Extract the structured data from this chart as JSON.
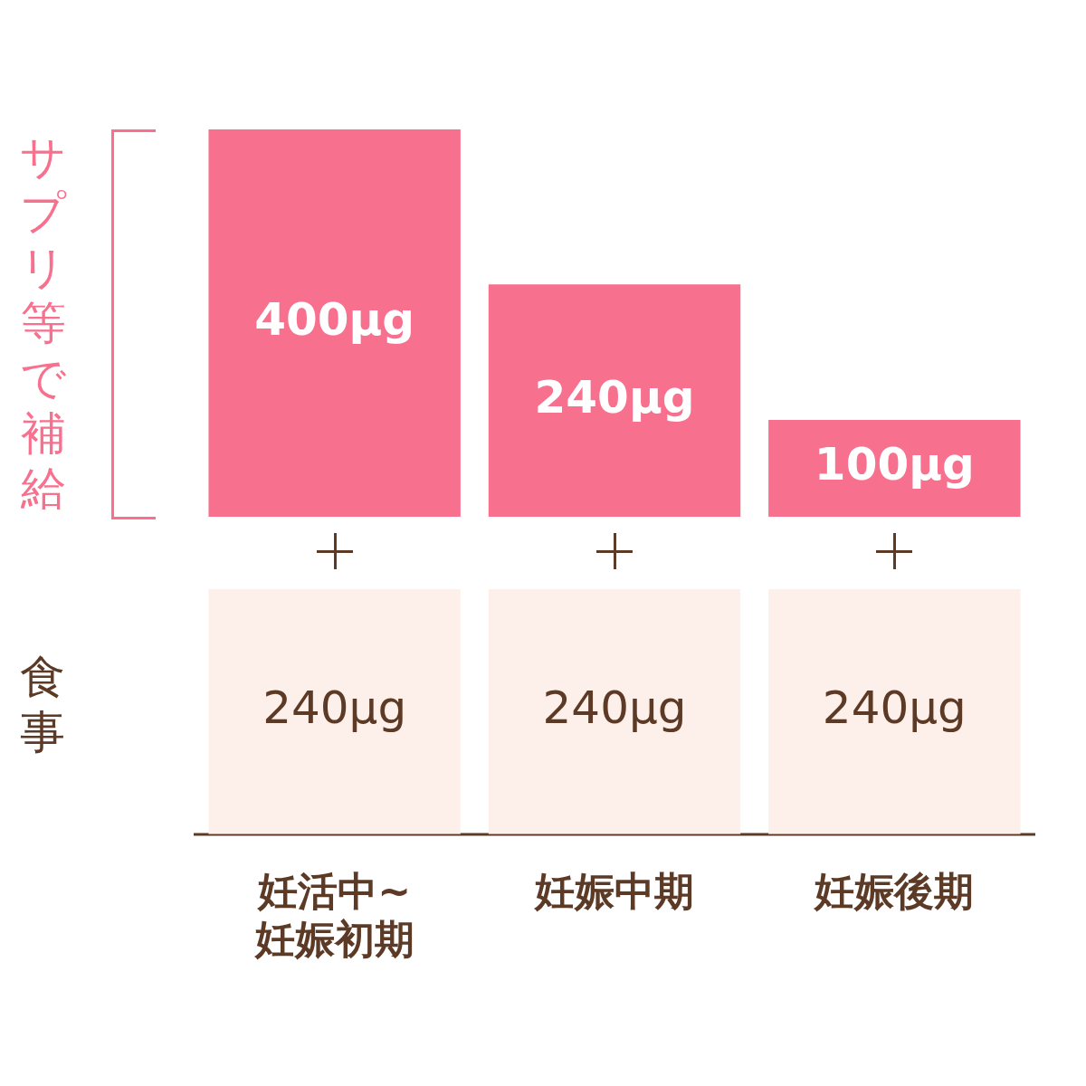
{
  "chart_data": [
    {
      "type": "bar",
      "ylabel": "サプリ等で補給",
      "tick_labels": false,
      "grid": false,
      "legend": false,
      "series": [
        {
          "color": "#f7708e",
          "values": [
            400,
            240,
            100
          ],
          "value_labels": [
            "400μg",
            "240μg",
            "100μg"
          ]
        }
      ]
    },
    {
      "type": "bar",
      "ylabel": "食事",
      "categories": [
        "妊活中~\n妊娠初期",
        "妊娠中期",
        "妊娠後期"
      ],
      "tick_labels": "x",
      "grid": false,
      "legend": false,
      "series": [
        {
          "color": "#fdf0ea",
          "values": [
            240,
            240,
            240
          ],
          "value_labels": [
            "240μg",
            "240μg",
            "240μg"
          ]
        }
      ]
    }
  ]
}
